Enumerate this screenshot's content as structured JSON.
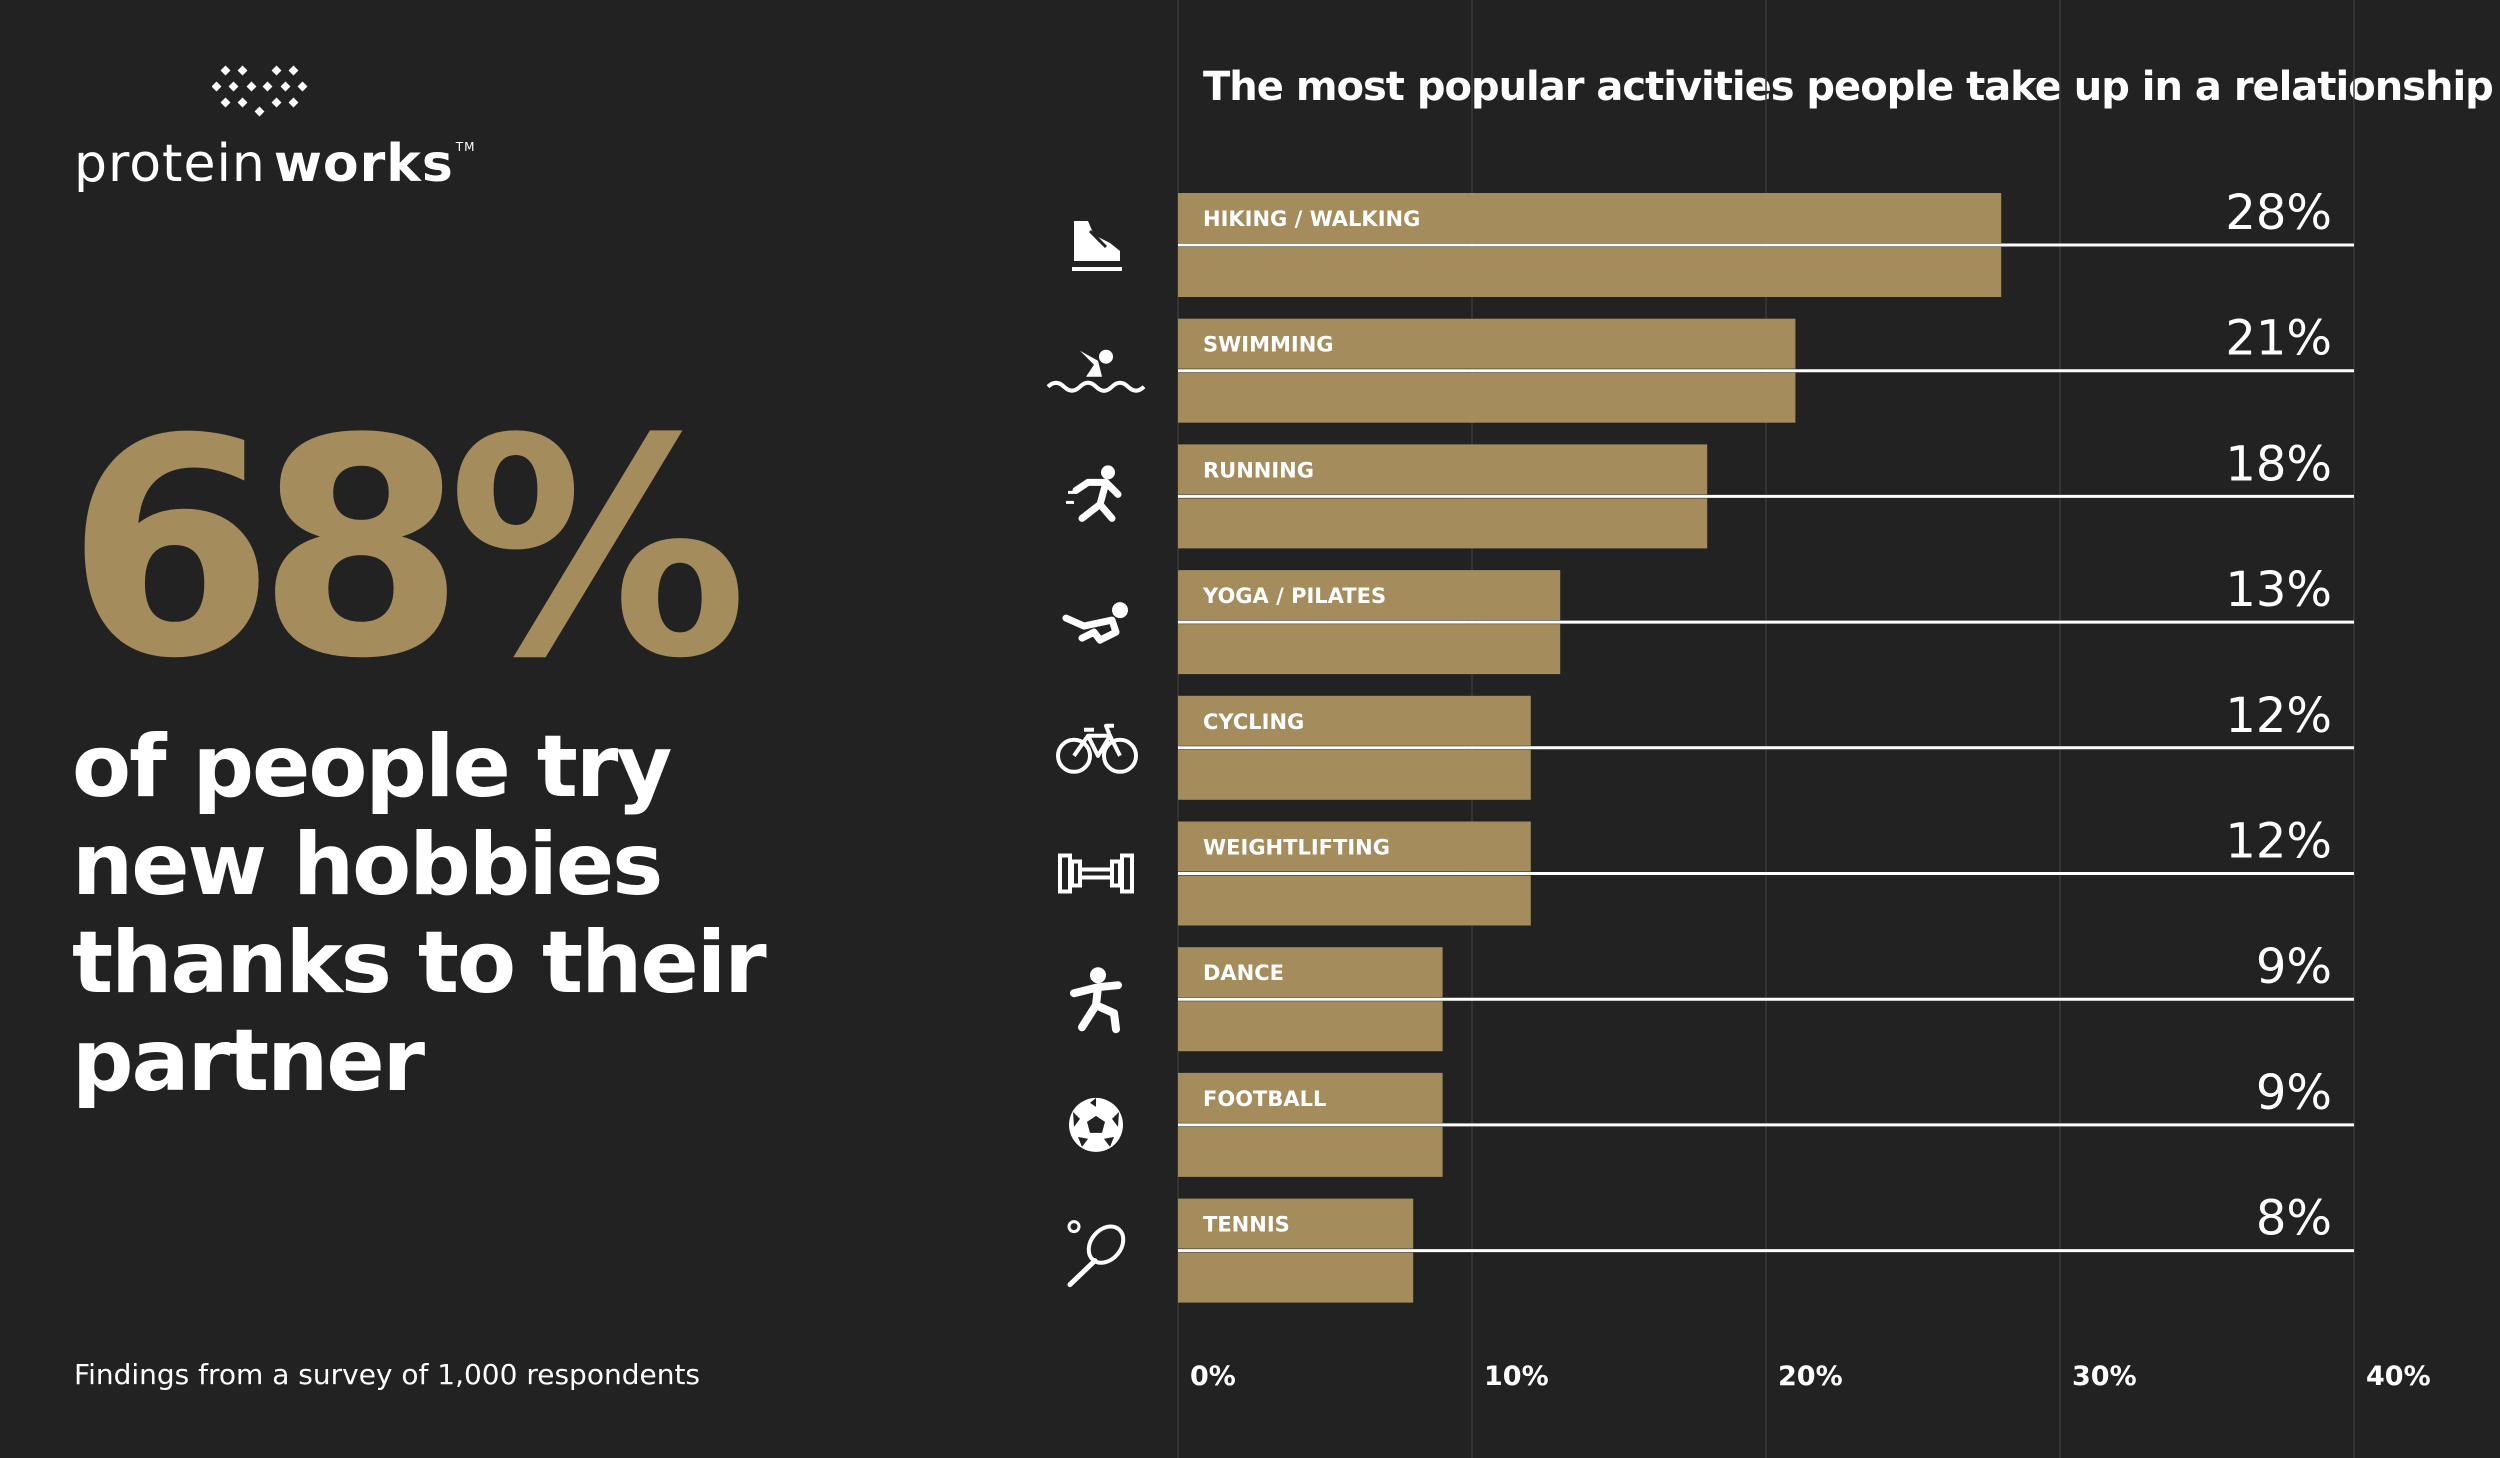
{
  "brand": {
    "logo_regular": "protein",
    "logo_bold": "works",
    "logo_tm": "TM"
  },
  "headline": {
    "stat": "68%",
    "text": "of people try new hobbies thanks to their partner"
  },
  "footnote": "Findings from a survey of 1,000 respondents",
  "colors": {
    "background": "#232222",
    "bar": "#a48c5c",
    "text": "#ffffff",
    "grid": "#3a3939"
  },
  "chart_data": {
    "type": "bar",
    "orientation": "horizontal",
    "title": "The most popular activities people take up in a relationship",
    "categories": [
      "HIKING / WALKING",
      "SWIMMING",
      "RUNNING",
      "YOGA / PILATES",
      "CYCLING",
      "WEIGHTLIFTING",
      "DANCE",
      "FOOTBALL",
      "TENNIS"
    ],
    "icons": [
      "shoe-icon",
      "swimmer-icon",
      "runner-icon",
      "yoga-icon",
      "bicycle-icon",
      "dumbbell-icon",
      "dancer-icon",
      "football-icon",
      "tennis-icon"
    ],
    "values": [
      28,
      21,
      18,
      13,
      12,
      12,
      9,
      9,
      8
    ],
    "value_labels": [
      "28%",
      "21%",
      "18%",
      "13%",
      "12%",
      "12%",
      "9%",
      "9%",
      "8%"
    ],
    "xlim": [
      0,
      40
    ],
    "xticks": [
      0,
      10,
      20,
      30,
      40
    ],
    "xtick_labels": [
      "0%",
      "10%",
      "20%",
      "30%",
      "40%"
    ],
    "grid": true
  }
}
